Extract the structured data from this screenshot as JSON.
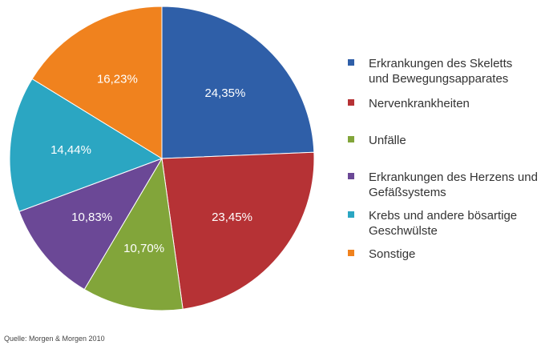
{
  "chart_data": {
    "type": "pie",
    "slices": [
      {
        "label": "Erkrankungen des Skeletts und Bewegungsapparates",
        "value": 24.35,
        "value_label": "24,35%",
        "color": "#2f5fa8"
      },
      {
        "label": "Nervenkrankheiten",
        "value": 23.45,
        "value_label": "23,45%",
        "color": "#b63235"
      },
      {
        "label": "Unfälle",
        "value": 10.7,
        "value_label": "10,70%",
        "color": "#82a53a"
      },
      {
        "label": "Erkrankungen des Herzens und Gefäßsystems",
        "value": 10.83,
        "value_label": "10,83%",
        "color": "#6b4896"
      },
      {
        "label": "Krebs und andere bösartige Geschwülste",
        "value": 14.44,
        "value_label": "14,44%",
        "color": "#2ba6c2"
      },
      {
        "label": "Sonstige",
        "value": 16.23,
        "value_label": "16,23%",
        "color": "#f0821e"
      }
    ],
    "start_angle_deg": 0,
    "direction": "clockwise",
    "legend_position": "right"
  },
  "legend": {
    "items": [
      {
        "line1": "Erkrankungen des Skeletts",
        "line2": "und Bewegungsapparates",
        "color": "#2f5fa8"
      },
      {
        "line1": "Nervenkrankheiten",
        "line2": "",
        "color": "#b63235"
      },
      {
        "line1": "Unfälle",
        "line2": "",
        "color": "#82a53a"
      },
      {
        "line1": "Erkrankungen des Herzens und",
        "line2": "Gefäßsystems",
        "color": "#6b4896"
      },
      {
        "line1": "Krebs und andere bösartige",
        "line2": "Geschwülste",
        "color": "#2ba6c2"
      },
      {
        "line1": "Sonstige",
        "line2": "",
        "color": "#f0821e"
      }
    ]
  },
  "source": "Quelle: Morgen & Morgen 2010"
}
